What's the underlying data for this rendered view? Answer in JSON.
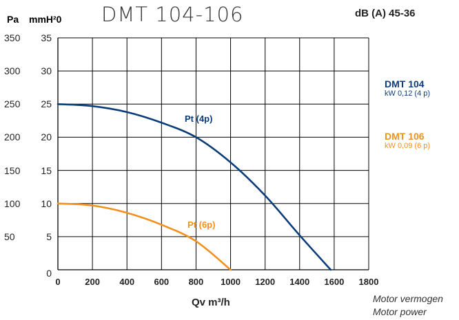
{
  "header": {
    "unit_pa": "Pa",
    "unit_mmh2o": "mmH²0",
    "title": "DMT 104-106",
    "noise": "dB (A) 45-36"
  },
  "legend": [
    {
      "name": "DMT 104",
      "power": "kW 0,12 (4 p)",
      "color": "#0b3c7a"
    },
    {
      "name": "DMT 106",
      "power": "kW 0,09 (6 p)",
      "color": "#f2901e"
    }
  ],
  "footer": {
    "line1": "Motor vermogen",
    "line2": "Motor power"
  },
  "chart_data": {
    "type": "line",
    "title": "DMT 104-106",
    "xlabel": "Qv m³/h",
    "ylabel_left": "Pa",
    "ylabel_right": "mmH²0",
    "xlim": [
      0,
      1800
    ],
    "ylim": [
      0,
      35
    ],
    "x_ticks": [
      "0",
      "200",
      "400",
      "600",
      "800",
      "1000",
      "1200",
      "1400",
      "1600",
      "1800"
    ],
    "y_ticks_mmh2o": [
      "0",
      "5",
      "10",
      "15",
      "20",
      "25",
      "30",
      "35"
    ],
    "y_ticks_pa": [
      "",
      "50",
      "100",
      "150",
      "200",
      "250",
      "300",
      "350"
    ],
    "grid": true,
    "series": [
      {
        "name": "Pt (4p)",
        "color": "#0b3c7a",
        "x": [
          0,
          200,
          400,
          600,
          800,
          1000,
          1200,
          1400,
          1580
        ],
        "y": [
          25,
          24.7,
          23.8,
          22.2,
          20,
          16.2,
          11.2,
          5.2,
          0
        ]
      },
      {
        "name": "Pt (6p)",
        "color": "#f2901e",
        "x": [
          0,
          200,
          400,
          600,
          800,
          1000
        ],
        "y": [
          10,
          9.7,
          8.6,
          6.8,
          4.3,
          0
        ]
      }
    ]
  }
}
